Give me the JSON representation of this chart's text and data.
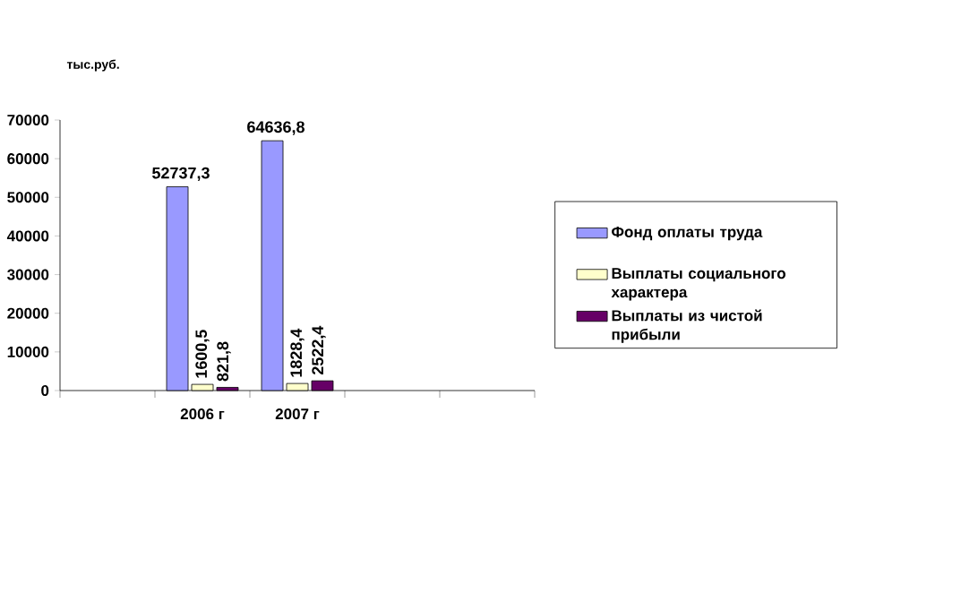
{
  "chart_data": {
    "type": "bar",
    "ylabel": "тыс.руб.",
    "categories": [
      null,
      "2006 г",
      "2007 г",
      null,
      null
    ],
    "ylim": [
      0,
      70000
    ],
    "yticks": [
      0,
      10000,
      20000,
      30000,
      40000,
      50000,
      60000,
      70000
    ],
    "grid": false,
    "legend": "right",
    "series": [
      {
        "name": "Фонд оплаты труда",
        "color": "#9999ff",
        "values": [
          null,
          52737.3,
          64636.8,
          null,
          null
        ],
        "value_labels": [
          null,
          "52737,3",
          "64636,8",
          null,
          null
        ]
      },
      {
        "name": "Выплаты социального характера",
        "color": "#ffffcc",
        "values": [
          null,
          1600.5,
          1828.4,
          null,
          null
        ],
        "value_labels": [
          null,
          "1600,5",
          "1828,4",
          null,
          null
        ]
      },
      {
        "name": "Выплаты из чистой прибыли",
        "color": "#660066",
        "values": [
          null,
          821.8,
          2522.4,
          null,
          null
        ],
        "value_labels": [
          null,
          "821,8",
          "2522,4",
          null,
          null
        ]
      }
    ]
  }
}
